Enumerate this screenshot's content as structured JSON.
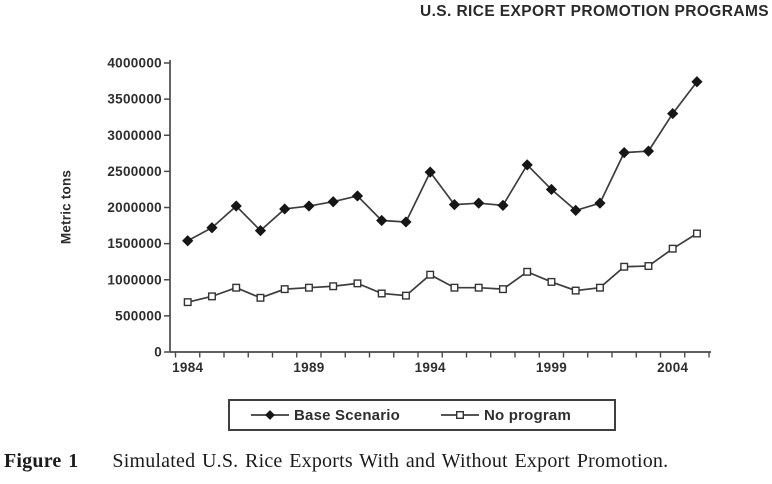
{
  "title": "U.S. RICE EXPORT PROMOTION PROGRAMS",
  "figure": {
    "label": "Figure 1",
    "caption": "Simulated U.S. Rice Exports With and Without Export Promotion."
  },
  "chart_data": {
    "type": "line",
    "title": "U.S. RICE EXPORT PROMOTION PROGRAMS",
    "ylabel": "Metric tons",
    "xlabel": "",
    "ylim": [
      0,
      4000000
    ],
    "ytick_step": 500000,
    "grid": false,
    "legend_position": "bottom",
    "x": [
      1984,
      1985,
      1986,
      1987,
      1988,
      1989,
      1990,
      1991,
      1992,
      1993,
      1994,
      1995,
      1996,
      1997,
      1998,
      1999,
      2000,
      2001,
      2002,
      2003,
      2004,
      2005
    ],
    "xticks_labeled": [
      1984,
      1989,
      1994,
      1999,
      2004
    ],
    "series": [
      {
        "name": "Base Scenario",
        "marker": "diamond",
        "values": [
          1540000,
          1720000,
          2020000,
          1680000,
          1980000,
          2020000,
          2080000,
          2160000,
          1820000,
          1800000,
          2490000,
          2040000,
          2060000,
          2030000,
          2590000,
          2250000,
          1960000,
          2060000,
          2760000,
          2780000,
          3300000,
          3740000
        ]
      },
      {
        "name": "No program",
        "marker": "square",
        "values": [
          690000,
          770000,
          890000,
          750000,
          870000,
          890000,
          910000,
          950000,
          810000,
          780000,
          1070000,
          890000,
          890000,
          870000,
          1110000,
          970000,
          850000,
          890000,
          1180000,
          1190000,
          1430000,
          1640000
        ]
      }
    ],
    "colors": {
      "line": "#3d3d3d",
      "axis": "#4a4a4a",
      "text": "#2e2e2e",
      "marker_fill": "#161616",
      "marker_open_fill": "#ffffff"
    }
  }
}
